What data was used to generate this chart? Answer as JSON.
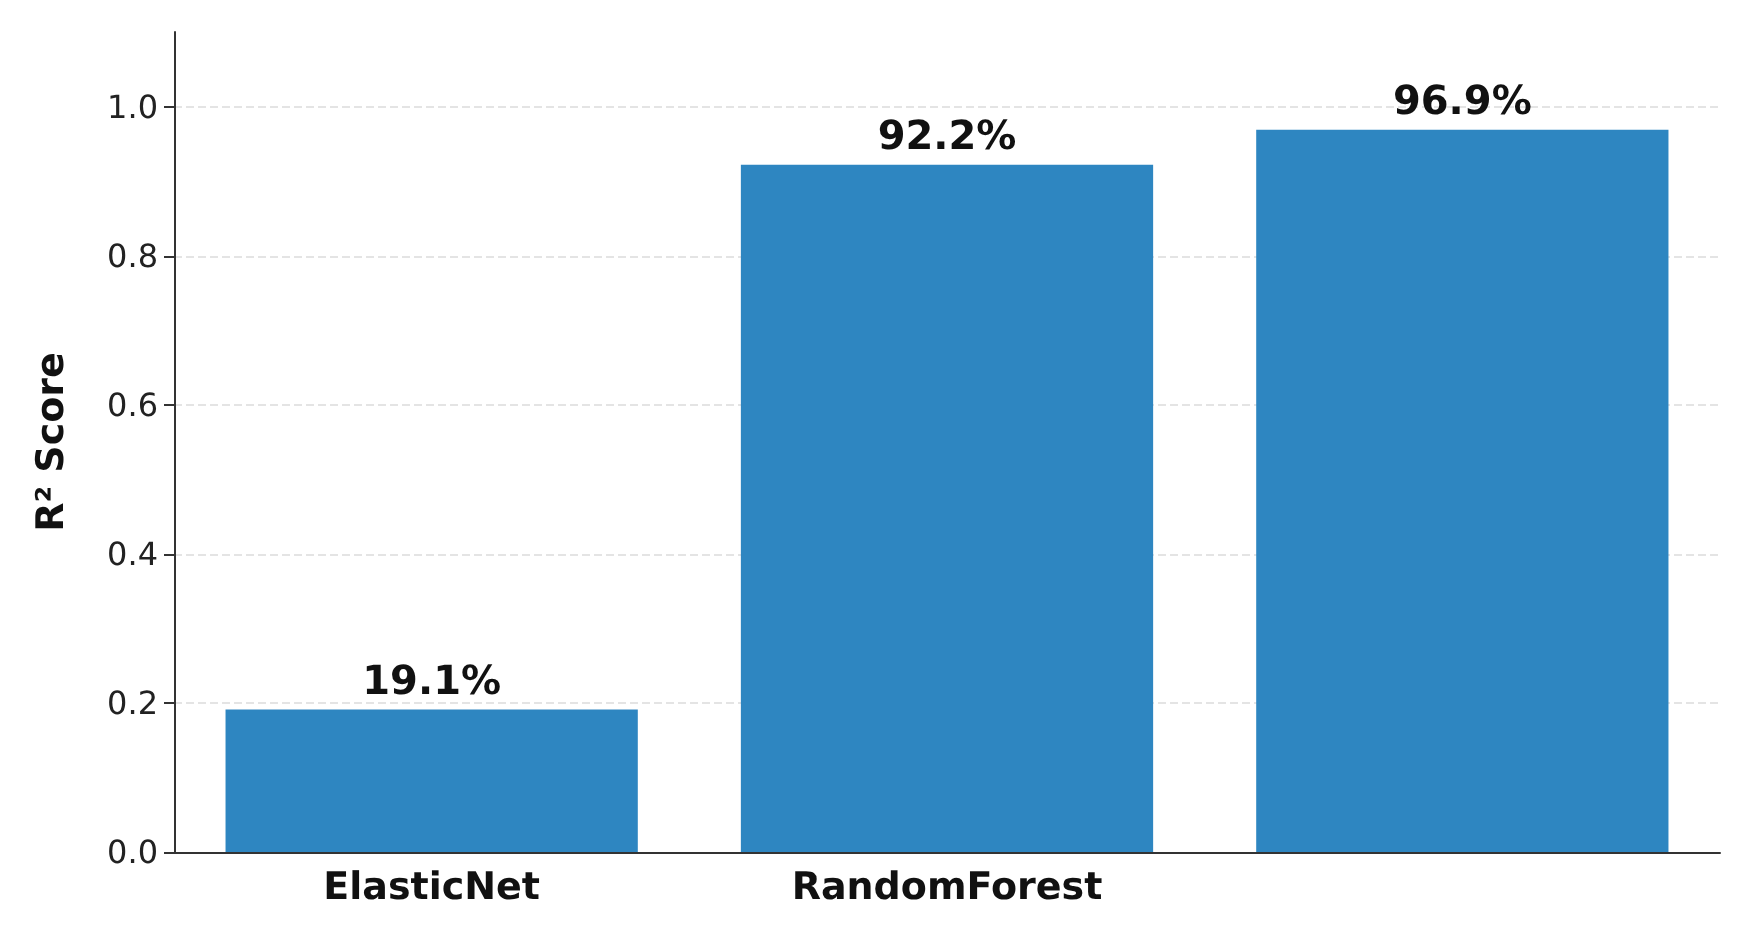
{
  "chart_data": {
    "type": "bar",
    "ylabel": "R² Score",
    "categories": [
      "ElasticNet",
      "RandomForest",
      null
    ],
    "series": [
      {
        "color": "#2e86c1",
        "values": [
          0.191,
          0.922,
          0.969
        ],
        "value_labels": [
          "19.1%",
          "92.2%",
          "96.9%"
        ]
      }
    ],
    "ylim": [
      0,
      1.1
    ],
    "yticks": [
      {
        "value": 0,
        "label": "0.0"
      },
      {
        "value": 0.2,
        "label": "0.2"
      },
      {
        "value": 0.4,
        "label": "0.4"
      },
      {
        "value": 0.6,
        "label": "0.6"
      },
      {
        "value": 0.8,
        "label": "0.8"
      },
      {
        "value": 1,
        "label": "1.0"
      }
    ],
    "grid": "y"
  }
}
